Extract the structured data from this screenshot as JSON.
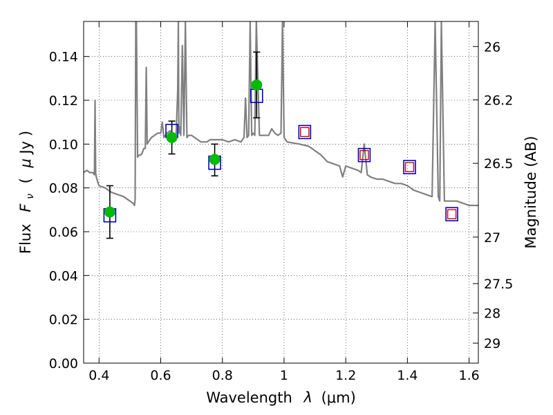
{
  "chart_data": {
    "type": "scatter",
    "xlabel_prefix": "Wavelength",
    "xlabel_symbol": "λ",
    "xlabel_unit": "(μm)",
    "ylabel_prefix": "Flux",
    "ylabel_symbol": "F",
    "ylabel_subscript": "ν",
    "ylabel_unit_open": "(",
    "ylabel_unit_mu": "μ",
    "ylabel_unit_rest": "Jy )",
    "y2label": "Magnitude (AB)",
    "xlim": [
      0.35,
      1.63
    ],
    "ylim": [
      0.0,
      0.156
    ],
    "grid": true,
    "x_ticks": [
      0.4,
      0.6,
      0.8,
      1.0,
      1.2,
      1.4,
      1.6
    ],
    "x_tick_labels": [
      "0.4",
      "0.6",
      "0.8",
      "1",
      "1.2",
      "1.4",
      "1.6"
    ],
    "y_ticks": [
      0.0,
      0.02,
      0.04,
      0.06,
      0.08,
      0.1,
      0.12,
      0.14
    ],
    "y_tick_labels": [
      "0.00",
      "0.02",
      "0.04",
      "0.06",
      "0.08",
      "0.10",
      "0.12",
      "0.14"
    ],
    "mag_ticks": [
      26,
      26.2,
      26.5,
      27,
      27.5,
      28,
      29
    ],
    "mag_tick_labels": [
      "26",
      "26.2",
      "26.5",
      "27",
      "27.5",
      "28",
      "29"
    ],
    "colors": {
      "spectrum": "#808080",
      "observed": "#00bb00",
      "model_box": "#0000cc",
      "prediction_box": "#cc0000",
      "errorbar": "#000000"
    },
    "series": [
      {
        "kind": "spectrum",
        "x": [
          0.35,
          0.36,
          0.37,
          0.38,
          0.385,
          0.387,
          0.389,
          0.391,
          0.395,
          0.4,
          0.42,
          0.44,
          0.46,
          0.48,
          0.5,
          0.51,
          0.515,
          0.517,
          0.519,
          0.521,
          0.525,
          0.53,
          0.535,
          0.54,
          0.545,
          0.55,
          0.553,
          0.556,
          0.56,
          0.57,
          0.58,
          0.59,
          0.6,
          0.605,
          0.61,
          0.615,
          0.62,
          0.63,
          0.64,
          0.65,
          0.655,
          0.657,
          0.659,
          0.661,
          0.665,
          0.67,
          0.675,
          0.68,
          0.685,
          0.69,
          0.7,
          0.72,
          0.73,
          0.74,
          0.75,
          0.76,
          0.77,
          0.78,
          0.8,
          0.82,
          0.84,
          0.86,
          0.87,
          0.875,
          0.88,
          0.885,
          0.89,
          0.895,
          0.9,
          0.905,
          0.91,
          0.92,
          0.93,
          0.94,
          0.95,
          0.96,
          0.97,
          0.98,
          0.99,
          0.995,
          1.0,
          1.005,
          1.01,
          1.05,
          1.08,
          1.1,
          1.12,
          1.14,
          1.16,
          1.18,
          1.19,
          1.2,
          1.22,
          1.24,
          1.25,
          1.26,
          1.27,
          1.28,
          1.3,
          1.32,
          1.34,
          1.36,
          1.38,
          1.4,
          1.42,
          1.44,
          1.46,
          1.48,
          1.49,
          1.5,
          1.505,
          1.51,
          1.52,
          1.54,
          1.56,
          1.58,
          1.6,
          1.63
        ],
        "y": [
          0.087,
          0.088,
          0.087,
          0.087,
          0.086,
          0.12,
          0.087,
          0.085,
          0.083,
          0.081,
          0.08,
          0.078,
          0.077,
          0.076,
          0.074,
          0.073,
          0.072,
          0.075,
          0.156,
          0.156,
          0.094,
          0.095,
          0.095,
          0.096,
          0.098,
          0.098,
          0.135,
          0.1,
          0.101,
          0.103,
          0.104,
          0.105,
          0.105,
          0.11,
          0.103,
          0.104,
          0.105,
          0.106,
          0.104,
          0.104,
          0.125,
          0.156,
          0.105,
          0.108,
          0.104,
          0.145,
          0.104,
          0.156,
          0.103,
          0.104,
          0.104,
          0.102,
          0.101,
          0.101,
          0.101,
          0.102,
          0.102,
          0.102,
          0.102,
          0.101,
          0.102,
          0.101,
          0.103,
          0.121,
          0.103,
          0.104,
          0.156,
          0.104,
          0.105,
          0.104,
          0.156,
          0.104,
          0.104,
          0.104,
          0.104,
          0.107,
          0.105,
          0.104,
          0.105,
          0.156,
          0.103,
          0.102,
          0.101,
          0.1,
          0.099,
          0.097,
          0.095,
          0.092,
          0.091,
          0.09,
          0.085,
          0.09,
          0.089,
          0.088,
          0.087,
          0.1,
          0.086,
          0.085,
          0.084,
          0.084,
          0.083,
          0.082,
          0.082,
          0.081,
          0.079,
          0.078,
          0.077,
          0.076,
          0.156,
          0.076,
          0.074,
          0.156,
          0.074,
          0.074,
          0.074,
          0.073,
          0.072,
          0.072
        ]
      },
      {
        "kind": "observed",
        "x": [
          0.435,
          0.636,
          0.775,
          0.911
        ],
        "y": [
          0.069,
          0.103,
          0.093,
          0.127
        ],
        "yerr_low": [
          0.057,
          0.0955,
          0.0855,
          0.112
        ],
        "yerr_high": [
          0.081,
          0.1105,
          0.1,
          0.142
        ]
      },
      {
        "kind": "model",
        "x": [
          0.435,
          0.636,
          0.775,
          0.911,
          1.067,
          1.26,
          1.407,
          1.544
        ],
        "y": [
          0.0675,
          0.106,
          0.0915,
          0.122,
          0.1055,
          0.095,
          0.0895,
          0.068
        ]
      },
      {
        "kind": "prediction",
        "x": [
          1.067,
          1.26,
          1.407,
          1.544
        ],
        "y": [
          0.1055,
          0.095,
          0.0895,
          0.068
        ]
      }
    ]
  }
}
